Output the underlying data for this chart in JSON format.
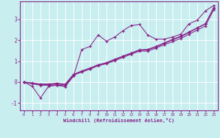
{
  "xlabel": "Windchill (Refroidissement éolien,°C)",
  "background_color": "#c8eef0",
  "grid_color": "#ffffff",
  "line_color": "#882288",
  "xlim": [
    -0.5,
    23.5
  ],
  "ylim": [
    -1.35,
    3.85
  ],
  "yticks": [
    -1,
    0,
    1,
    2,
    3
  ],
  "xticks": [
    0,
    1,
    2,
    3,
    4,
    5,
    6,
    7,
    8,
    9,
    10,
    11,
    12,
    13,
    14,
    15,
    16,
    17,
    18,
    19,
    20,
    21,
    22,
    23
  ],
  "series": [
    [
      0.0,
      -0.2,
      -0.75,
      -0.2,
      -0.15,
      -0.22,
      0.28,
      1.55,
      1.7,
      2.25,
      1.95,
      2.15,
      2.45,
      2.7,
      2.75,
      2.25,
      2.05,
      2.05,
      2.15,
      2.28,
      2.78,
      2.95,
      3.4,
      3.65
    ],
    [
      0.0,
      -0.08,
      -0.15,
      -0.15,
      -0.12,
      -0.18,
      0.33,
      0.48,
      0.62,
      0.78,
      0.88,
      1.02,
      1.18,
      1.33,
      1.48,
      1.48,
      1.62,
      1.78,
      1.93,
      2.08,
      2.28,
      2.48,
      2.68,
      3.45
    ],
    [
      0.0,
      -0.05,
      -0.12,
      -0.12,
      -0.08,
      -0.13,
      0.34,
      0.5,
      0.64,
      0.8,
      0.9,
      1.06,
      1.22,
      1.37,
      1.52,
      1.54,
      1.67,
      1.84,
      2.01,
      2.16,
      2.36,
      2.57,
      2.77,
      3.52
    ],
    [
      0.0,
      -0.04,
      -0.09,
      -0.09,
      -0.05,
      -0.1,
      0.37,
      0.53,
      0.67,
      0.83,
      0.93,
      1.09,
      1.24,
      1.39,
      1.54,
      1.56,
      1.7,
      1.87,
      2.04,
      2.19,
      2.39,
      2.59,
      2.79,
      3.55
    ]
  ]
}
